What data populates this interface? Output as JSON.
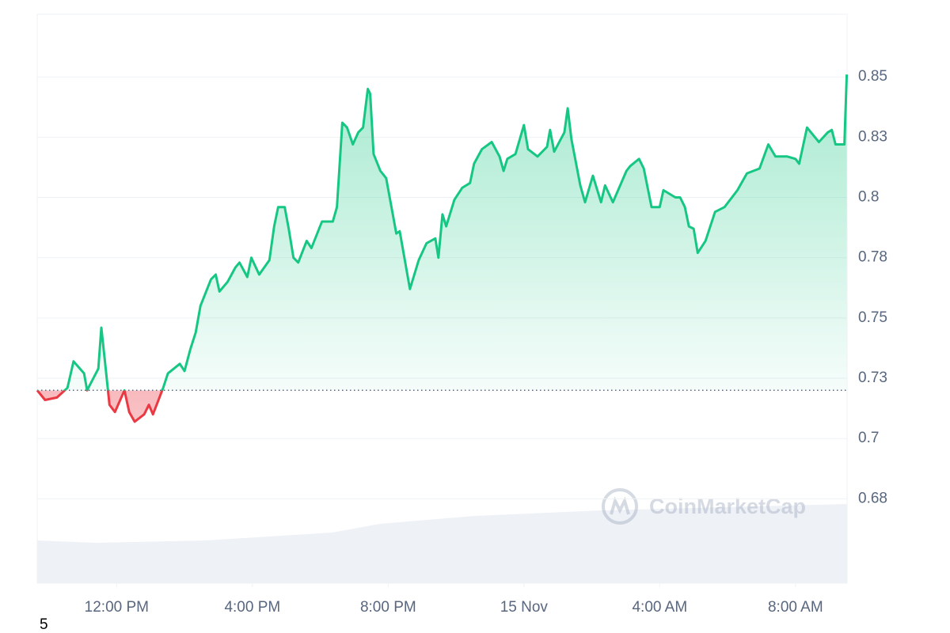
{
  "chart_data": {
    "type": "line",
    "x": [
      9.66,
      9.89,
      10.24,
      10.55,
      10.73,
      11.04,
      11.13,
      11.46,
      11.55,
      11.67,
      11.79,
      11.95,
      12.23,
      12.37,
      12.53,
      12.81,
      12.95,
      13.07,
      13.37,
      13.51,
      13.86,
      14.0,
      14.17,
      14.33,
      14.47,
      14.78,
      14.92,
      15.03,
      15.27,
      15.5,
      15.62,
      15.85,
      15.97,
      16.2,
      16.5,
      16.64,
      16.76,
      16.95,
      17.07,
      17.21,
      17.35,
      17.6,
      17.74,
      18.05,
      18.37,
      18.49,
      18.65,
      18.79,
      18.96,
      19.12,
      19.26,
      19.4,
      19.47,
      19.57,
      19.77,
      19.94,
      20.24,
      20.34,
      20.64,
      20.9,
      21.13,
      21.39,
      21.48,
      21.6,
      21.71,
      21.95,
      22.18,
      22.41,
      22.53,
      22.76,
      23.05,
      23.28,
      23.4,
      23.51,
      23.75,
      24.0,
      24.12,
      24.4,
      24.68,
      24.77,
      24.89,
      25.19,
      25.29,
      25.4,
      25.66,
      25.8,
      26.03,
      26.27,
      26.39,
      26.62,
      27.02,
      27.13,
      27.39,
      27.53,
      27.76,
      28.0,
      28.11,
      28.46,
      28.6,
      28.74,
      28.86,
      29.0,
      29.12,
      29.35,
      29.63,
      29.91,
      30.29,
      30.57,
      30.94,
      31.2,
      31.41,
      31.76,
      32.0,
      32.11,
      32.34,
      32.69,
      32.95,
      33.07,
      33.18,
      33.44,
      33.51
    ],
    "series": [
      {
        "color": "#16c784",
        "values": [
          0.72,
          0.716,
          0.717,
          0.721,
          0.732,
          0.727,
          0.72,
          0.729,
          0.746,
          0.73,
          0.714,
          0.711,
          0.72,
          0.711,
          0.707,
          0.71,
          0.714,
          0.71,
          0.721,
          0.727,
          0.731,
          0.728,
          0.737,
          0.744,
          0.755,
          0.766,
          0.768,
          0.761,
          0.765,
          0.771,
          0.773,
          0.767,
          0.775,
          0.768,
          0.774,
          0.788,
          0.796,
          0.796,
          0.787,
          0.775,
          0.773,
          0.782,
          0.779,
          0.79,
          0.79,
          0.796,
          0.831,
          0.829,
          0.822,
          0.827,
          0.829,
          0.845,
          0.843,
          0.818,
          0.811,
          0.808,
          0.785,
          0.786,
          0.762,
          0.774,
          0.781,
          0.783,
          0.775,
          0.793,
          0.788,
          0.799,
          0.804,
          0.806,
          0.814,
          0.82,
          0.823,
          0.817,
          0.811,
          0.816,
          0.818,
          0.83,
          0.82,
          0.817,
          0.821,
          0.828,
          0.819,
          0.827,
          0.837,
          0.824,
          0.805,
          0.798,
          0.809,
          0.798,
          0.805,
          0.798,
          0.811,
          0.813,
          0.816,
          0.812,
          0.796,
          0.796,
          0.803,
          0.8,
          0.8,
          0.796,
          0.788,
          0.787,
          0.777,
          0.782,
          0.794,
          0.796,
          0.803,
          0.81,
          0.812,
          0.822,
          0.817,
          0.817,
          0.816,
          0.814,
          0.829,
          0.823,
          0.827,
          0.828,
          0.822,
          0.822,
          0.851
        ]
      }
    ],
    "down_color": "#ea3943",
    "baseline": 0.72,
    "xlim": [
      9.66,
      33.52
    ],
    "xticks": [
      {
        "value": 12,
        "label": "12:00 PM"
      },
      {
        "value": 16,
        "label": "4:00 PM"
      },
      {
        "value": 20,
        "label": "8:00 PM"
      },
      {
        "value": 24,
        "label": "15 Nov"
      },
      {
        "value": 28,
        "label": "4:00 AM"
      },
      {
        "value": 32,
        "label": "8:00 AM"
      }
    ],
    "ylim": [
      0.64,
      0.876
    ],
    "yticks": [
      {
        "value": 0.675,
        "label": "0.68"
      },
      0.7,
      {
        "value": 0.725,
        "label": "0.73"
      },
      0.75,
      {
        "value": 0.775,
        "label": "0.78"
      },
      0.8,
      {
        "value": 0.825,
        "label": "0.83"
      },
      0.85
    ],
    "grid": true,
    "watermark": "CoinMarketCap"
  },
  "footnote": "5"
}
